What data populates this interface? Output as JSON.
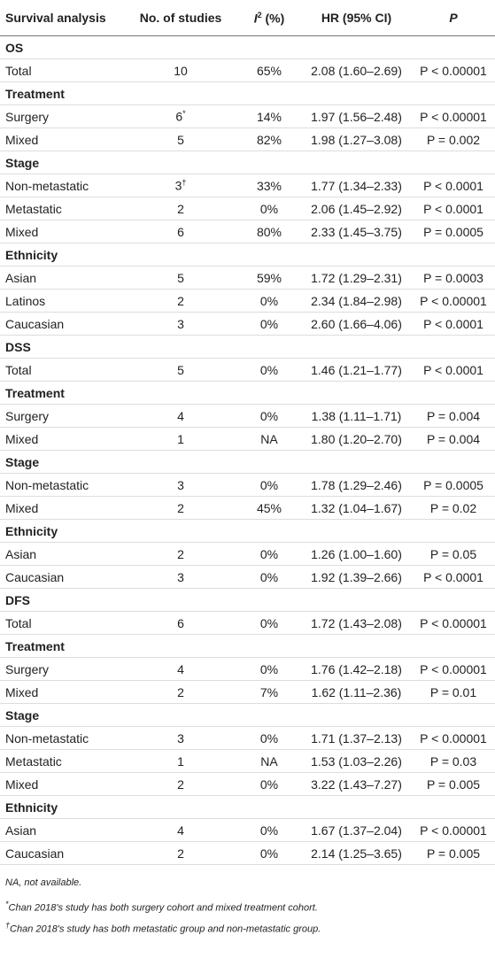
{
  "table": {
    "header": {
      "label": "Survival analysis",
      "studies": "No. of studies",
      "i2": {
        "main": "I",
        "sup": "2",
        "rest": " (%)"
      },
      "hr": "HR (95% CI)",
      "p": "P"
    },
    "rows": [
      {
        "heading": "OS"
      },
      {
        "label": "Total",
        "studies": 10,
        "i2": "65%",
        "hr": "2.08 (1.60–2.69)",
        "p": "P < 0.00001"
      },
      {
        "heading": "Treatment"
      },
      {
        "label": "Surgery",
        "studies": 6,
        "mark": "*",
        "i2": "14%",
        "hr": "1.97 (1.56–2.48)",
        "p": "P < 0.00001"
      },
      {
        "label": "Mixed",
        "studies": 5,
        "i2": "82%",
        "hr": "1.98 (1.27–3.08)",
        "p": "P = 0.002"
      },
      {
        "heading": "Stage"
      },
      {
        "label": "Non-metastatic",
        "studies": 3,
        "mark": "†",
        "i2": "33%",
        "hr": "1.77 (1.34–2.33)",
        "p": "P < 0.0001"
      },
      {
        "label": "Metastatic",
        "studies": 2,
        "i2": "0%",
        "hr": "2.06 (1.45–2.92)",
        "p": "P < 0.0001"
      },
      {
        "label": "Mixed",
        "studies": 6,
        "i2": "80%",
        "hr": "2.33 (1.45–3.75)",
        "p": "P = 0.0005"
      },
      {
        "heading": "Ethnicity"
      },
      {
        "label": "Asian",
        "studies": 5,
        "i2": "59%",
        "hr": "1.72 (1.29–2.31)",
        "p": "P = 0.0003"
      },
      {
        "label": "Latinos",
        "studies": 2,
        "i2": "0%",
        "hr": "2.34 (1.84–2.98)",
        "p": "P < 0.00001"
      },
      {
        "label": "Caucasian",
        "studies": 3,
        "i2": "0%",
        "hr": "2.60 (1.66–4.06)",
        "p": "P < 0.0001"
      },
      {
        "heading": "DSS"
      },
      {
        "label": "Total",
        "studies": 5,
        "i2": "0%",
        "hr": "1.46 (1.21–1.77)",
        "p": "P < 0.0001"
      },
      {
        "heading": "Treatment"
      },
      {
        "label": "Surgery",
        "studies": 4,
        "i2": "0%",
        "hr": "1.38 (1.11–1.71)",
        "p": "P = 0.004"
      },
      {
        "label": "Mixed",
        "studies": 1,
        "i2": "NA",
        "hr": "1.80 (1.20–2.70)",
        "p": "P = 0.004"
      },
      {
        "heading": "Stage"
      },
      {
        "label": "Non-metastatic",
        "studies": 3,
        "i2": "0%",
        "hr": "1.78 (1.29–2.46)",
        "p": "P = 0.0005"
      },
      {
        "label": "Mixed",
        "studies": 2,
        "i2": "45%",
        "hr": "1.32 (1.04–1.67)",
        "p": "P = 0.02"
      },
      {
        "heading": "Ethnicity"
      },
      {
        "label": "Asian",
        "studies": 2,
        "i2": "0%",
        "hr": "1.26 (1.00–1.60)",
        "p": "P = 0.05"
      },
      {
        "label": "Caucasian",
        "studies": 3,
        "i2": "0%",
        "hr": "1.92 (1.39–2.66)",
        "p": "P < 0.0001"
      },
      {
        "heading": "DFS"
      },
      {
        "label": "Total",
        "studies": 6,
        "i2": "0%",
        "hr": "1.72 (1.43–2.08)",
        "p": "P < 0.00001"
      },
      {
        "heading": "Treatment"
      },
      {
        "label": "Surgery",
        "studies": 4,
        "i2": "0%",
        "hr": "1.76 (1.42–2.18)",
        "p": "P < 0.00001"
      },
      {
        "label": "Mixed",
        "studies": 2,
        "i2": "7%",
        "hr": "1.62 (1.11–2.36)",
        "p": "P = 0.01"
      },
      {
        "heading": "Stage"
      },
      {
        "label": "Non-metastatic",
        "studies": 3,
        "i2": "0%",
        "hr": "1.71 (1.37–2.13)",
        "p": "P < 0.00001"
      },
      {
        "label": "Metastatic",
        "studies": 1,
        "i2": "NA",
        "hr": "1.53 (1.03–2.26)",
        "p": "P = 0.03"
      },
      {
        "label": "Mixed",
        "studies": 2,
        "i2": "0%",
        "hr": "3.22 (1.43–7.27)",
        "p": "P = 0.005"
      },
      {
        "heading": "Ethnicity"
      },
      {
        "label": "Asian",
        "studies": 4,
        "i2": "0%",
        "hr": "1.67 (1.37–2.04)",
        "p": "P < 0.00001"
      },
      {
        "label": "Caucasian",
        "studies": 2,
        "i2": "0%",
        "hr": "2.14 (1.25–3.65)",
        "p": "P = 0.005"
      }
    ],
    "footnotes": [
      {
        "text": "NA, not available."
      },
      {
        "mark": "*",
        "text": "Chan 2018's study has both surgery cohort and mixed treatment cohort."
      },
      {
        "mark": "†",
        "text": "Chan 2018's study has both metastatic group and non-metastatic group."
      }
    ]
  }
}
